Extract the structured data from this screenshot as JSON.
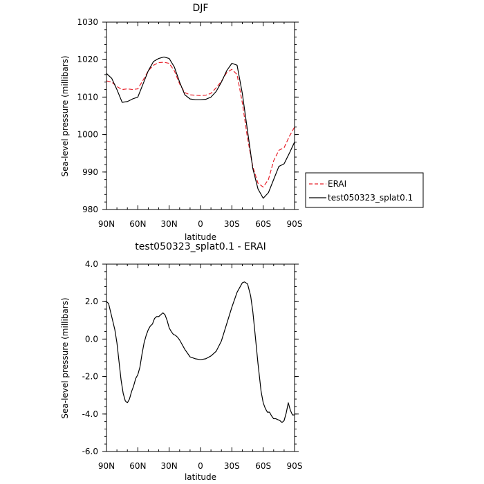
{
  "chart_data": [
    {
      "type": "line",
      "title": "DJF",
      "xlabel": "latitude",
      "ylabel": "Sea-level pressure (millibars)",
      "x_tick_labels": [
        "90N",
        "60N",
        "30N",
        "0",
        "30S",
        "60S",
        "90S"
      ],
      "x_tick_values": [
        90,
        60,
        30,
        0,
        -30,
        -60,
        -90
      ],
      "xlim": [
        90,
        -90
      ],
      "ylim": [
        980,
        1030
      ],
      "y_tick_labels": [
        "980",
        "990",
        "1000",
        "1010",
        "1020",
        "1030"
      ],
      "grid": false,
      "legend_position": "right",
      "series": [
        {
          "name": "ERAI",
          "color": "#e8202a",
          "dash": "dashed",
          "x": [
            90,
            85,
            80,
            75,
            70,
            65,
            60,
            55,
            50,
            45,
            40,
            35,
            30,
            25,
            20,
            15,
            10,
            5,
            0,
            -5,
            -10,
            -15,
            -20,
            -25,
            -30,
            -35,
            -40,
            -45,
            -50,
            -55,
            -60,
            -65,
            -70,
            -75,
            -80,
            -85,
            -90
          ],
          "y": [
            1014.3,
            1014.0,
            1012.8,
            1012.0,
            1012.2,
            1012.0,
            1012.2,
            1014.5,
            1017.0,
            1018.5,
            1019.2,
            1019.3,
            1019.0,
            1017.0,
            1013.5,
            1011.2,
            1010.6,
            1010.5,
            1010.4,
            1010.5,
            1011.0,
            1012.5,
            1014.2,
            1016.5,
            1017.4,
            1016.0,
            1008.5,
            999.0,
            991.5,
            987.0,
            986.0,
            988.0,
            993.0,
            995.8,
            996.5,
            999.5,
            1002.0
          ]
        },
        {
          "name": "test050323_splat0.1",
          "color": "#000000",
          "dash": "solid",
          "x": [
            90,
            85,
            80,
            75,
            70,
            65,
            60,
            55,
            50,
            45,
            40,
            35,
            30,
            25,
            20,
            15,
            10,
            5,
            0,
            -5,
            -10,
            -15,
            -20,
            -25,
            -30,
            -35,
            -40,
            -45,
            -50,
            -55,
            -60,
            -65,
            -70,
            -75,
            -80,
            -85,
            -90
          ],
          "y": [
            1016.3,
            1015.0,
            1012.0,
            1008.6,
            1008.8,
            1009.5,
            1010.0,
            1013.5,
            1017.0,
            1019.5,
            1020.3,
            1020.7,
            1020.3,
            1018.0,
            1014.0,
            1010.6,
            1009.5,
            1009.3,
            1009.3,
            1009.4,
            1010.0,
            1011.5,
            1014.0,
            1017.0,
            1019.0,
            1018.5,
            1011.0,
            1001.0,
            991.0,
            985.5,
            983.0,
            984.5,
            988.0,
            991.5,
            992.2,
            995.0,
            998.0
          ]
        }
      ]
    },
    {
      "type": "line",
      "title": "test050323_splat0.1 - ERAI",
      "xlabel": "latitude",
      "ylabel": "Sea-level pressure (millibars)",
      "x_tick_labels": [
        "90N",
        "60N",
        "30N",
        "0",
        "30S",
        "60S",
        "90S"
      ],
      "x_tick_values": [
        90,
        60,
        30,
        0,
        -30,
        -60,
        -90
      ],
      "xlim": [
        90,
        -90
      ],
      "ylim": [
        -6,
        4
      ],
      "y_tick_labels": [
        "-6.0",
        "-4.0",
        "-2.0",
        "0.0",
        "2.0",
        "4.0"
      ],
      "grid": false,
      "series": [
        {
          "color": "#000000",
          "dash": "solid",
          "x": [
            90,
            88,
            85,
            82,
            80,
            78,
            76,
            74,
            72,
            70,
            68,
            66,
            64,
            62,
            60,
            58,
            56,
            54,
            52,
            50,
            48,
            46,
            44,
            42,
            40,
            38,
            36,
            34,
            32,
            30,
            28,
            26,
            24,
            22,
            20,
            15,
            10,
            5,
            0,
            -5,
            -10,
            -15,
            -20,
            -25,
            -30,
            -35,
            -40,
            -42,
            -45,
            -48,
            -50,
            -52,
            -55,
            -58,
            -60,
            -62,
            -64,
            -66,
            -68,
            -70,
            -72,
            -74,
            -76,
            -78,
            -80,
            -82,
            -84,
            -86,
            -88,
            -90
          ],
          "y": [
            2.0,
            1.9,
            1.2,
            0.5,
            -0.2,
            -1.2,
            -2.2,
            -2.9,
            -3.3,
            -3.4,
            -3.2,
            -2.8,
            -2.5,
            -2.1,
            -1.9,
            -1.5,
            -0.8,
            -0.2,
            0.2,
            0.5,
            0.7,
            0.8,
            1.1,
            1.2,
            1.2,
            1.3,
            1.4,
            1.3,
            1.0,
            0.6,
            0.4,
            0.25,
            0.2,
            0.1,
            -0.05,
            -0.55,
            -0.95,
            -1.05,
            -1.1,
            -1.05,
            -0.9,
            -0.65,
            -0.1,
            0.8,
            1.7,
            2.5,
            3.0,
            3.05,
            2.95,
            2.3,
            1.5,
            0.4,
            -1.3,
            -2.8,
            -3.4,
            -3.7,
            -3.9,
            -3.9,
            -4.1,
            -4.25,
            -4.25,
            -4.3,
            -4.35,
            -4.45,
            -4.35,
            -3.95,
            -3.4,
            -3.8,
            -4.05,
            -4.05
          ]
        }
      ]
    }
  ]
}
